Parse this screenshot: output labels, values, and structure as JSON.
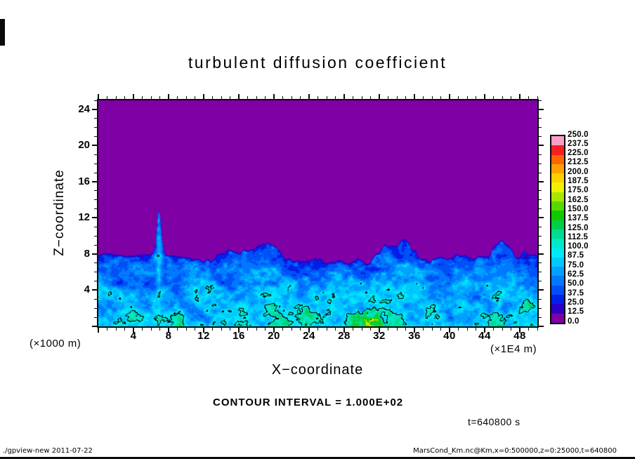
{
  "title": "turbulent diffusion coefficient",
  "axes": {
    "x_label": "X−coordinate",
    "y_label": "Z−coordinate",
    "x_unit_note": "(×1E4 m)",
    "y_unit_note": "(×1000 m)",
    "x_ticks": [
      4,
      8,
      12,
      16,
      20,
      24,
      28,
      32,
      36,
      40,
      44,
      48
    ],
    "y_ticks": [
      4,
      8,
      12,
      16,
      20,
      24
    ],
    "x_range": [
      0,
      50
    ],
    "y_range": [
      0,
      25
    ]
  },
  "annotations": {
    "contour_note": "CONTOUR INTERVAL = 1.000E+02",
    "time_label": "t=640800 s",
    "footer_left": "./gpview-new  2011-07-22",
    "footer_right": "MarsCond_Km.nc@Km,x=0:500000,z=0:25000,t=640800"
  },
  "colorbar": {
    "labels_top_to_bottom": [
      "250.0",
      "237.5",
      "225.0",
      "212.5",
      "200.0",
      "187.5",
      "175.0",
      "162.5",
      "150.0",
      "137.5",
      "125.0",
      "112.5",
      "100.0",
      "87.5",
      "75.0",
      "62.5",
      "50.0",
      "37.5",
      "25.0",
      "12.5",
      "0.0"
    ]
  },
  "chart_data": {
    "type": "heatmap",
    "subtype": "filled_contour",
    "title": "turbulent diffusion coefficient",
    "xlabel": "X−coordinate (×1E4 m)",
    "ylabel": "Z−coordinate (×1000 m)",
    "x_range": [
      0,
      50
    ],
    "z_range": [
      0,
      25
    ],
    "contour_interval": 100.0,
    "time_s": 640800,
    "levels": [
      0,
      12.5,
      25,
      37.5,
      50,
      62.5,
      75,
      87.5,
      100,
      112.5,
      125,
      137.5,
      150,
      162.5,
      175,
      187.5,
      200,
      212.5,
      225,
      237.5,
      250
    ],
    "palette_low_to_high": [
      "#7F00A5",
      "#2A00C8",
      "#0020E8",
      "#0050F8",
      "#0078FF",
      "#00A0FF",
      "#00C8FF",
      "#00E8F8",
      "#00E8C8",
      "#00DC90",
      "#00D048",
      "#10C800",
      "#58D800",
      "#A8E800",
      "#F0F000",
      "#FFD000",
      "#FFA000",
      "#FF6400",
      "#F52020",
      "#FA9EC8"
    ],
    "structure": {
      "upper_region_value": 0.0,
      "upper_region_extent": "z above roughly 8 (×1000 m) is uniform at minimum value (purple)",
      "mixed_layer_top_z": 8,
      "mixed_layer_value_range": [
        12.5,
        100
      ],
      "plume": {
        "x": 7,
        "top_z": 13
      },
      "surface_hotspots_x": [
        21,
        30.5,
        46.5
      ],
      "max_value_near_surface": 155
    },
    "render_params": {
      "iface_base": 8.15,
      "iface_noise_scale": 0.45,
      "iface_noise_amp": 3.2,
      "iface_amp_ramp": [
        3,
        18
      ],
      "plume_x": 6.9,
      "plume_height": 4.9,
      "plume_width2": 0.14,
      "edge_width": 0.35,
      "base_min": 26,
      "base_span": 70,
      "turb_scales": [
        0.55,
        0.75,
        1.6,
        2.0
      ],
      "filament_amp": 55,
      "plume_streak_amp": 14,
      "hotspots": [
        {
          "x": 30.8,
          "sx2": 3.0,
          "sz": 2.0,
          "amp": 150
        },
        {
          "x": 46.4,
          "sx2": 1.0,
          "sz": 1.4,
          "amp": 95
        },
        {
          "x": 21.2,
          "sx2": 0.8,
          "sz": 1.2,
          "amp": 70
        }
      ],
      "hotspot_cap": 85,
      "contour_levels_drawn": [
        100,
        200
      ]
    }
  }
}
